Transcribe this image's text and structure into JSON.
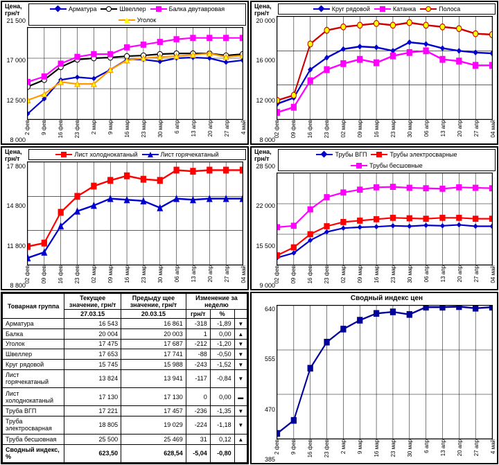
{
  "xlabels": [
    "2 фев",
    "9 фев",
    "16 фев",
    "23 фев",
    "2 мар",
    "9 мар",
    "16 мар",
    "23 мар",
    "30 мар",
    "6 апр",
    "13 апр",
    "20 апр",
    "27 апр",
    "4 май"
  ],
  "xlabels_alt": [
    "02 фев",
    "09 фев",
    "16 фев",
    "23 фев",
    "02 мар",
    "09 мар",
    "16 мар",
    "23 мар",
    "30 мар",
    "06 апр",
    "13 апр",
    "20 апр",
    "27 апр",
    "04 май"
  ],
  "ylabel": "Цена, грн/т",
  "grid_color": "#000000",
  "plot_bg": "#c0c0c0",
  "inner_bg": "#ffffff",
  "font_size_axis": 9,
  "font_size_legend": 9,
  "line_width": 2,
  "marker_size": 7,
  "chart1": {
    "type": "line",
    "ylim": [
      8000,
      21500
    ],
    "yticks": [
      8000,
      12500,
      17000,
      21500
    ],
    "series": [
      {
        "name": "Арматура",
        "color": "#0000cc",
        "marker": "diamond",
        "values": [
          8800,
          11000,
          13800,
          14200,
          14000,
          15300,
          16800,
          16800,
          16500,
          17000,
          17100,
          17000,
          16400,
          16700
        ]
      },
      {
        "name": "Швеллер",
        "color": "#000000",
        "marker": "circle",
        "fill": "#ffffff",
        "values": [
          12800,
          13800,
          15700,
          16800,
          17000,
          17100,
          17300,
          17400,
          17600,
          17700,
          17700,
          17700,
          17400,
          17600
        ]
      },
      {
        "name": "Балка двутавровая",
        "color": "#ff00ff",
        "marker": "square",
        "values": [
          13500,
          14300,
          16200,
          17200,
          17600,
          17600,
          18600,
          19000,
          19400,
          19800,
          20000,
          20000,
          20000,
          20000
        ]
      },
      {
        "name": "Уголок",
        "color": "#ff9900",
        "marker": "triangle",
        "fill": "#ffff00",
        "values": [
          10800,
          11700,
          13500,
          13200,
          13200,
          15300,
          16700,
          17000,
          17200,
          17300,
          17500,
          17700,
          17200,
          17400
        ]
      }
    ]
  },
  "chart2": {
    "type": "line",
    "ylim": [
      8000,
      20000
    ],
    "yticks": [
      8000,
      12000,
      16000,
      20000
    ],
    "series": [
      {
        "name": "Круг рядовой",
        "color": "#0000cc",
        "marker": "diamond",
        "values": [
          9800,
          10500,
          13800,
          15200,
          16200,
          16500,
          16400,
          16000,
          17000,
          16800,
          16300,
          16000,
          15800,
          15700
        ]
      },
      {
        "name": "Катанка",
        "color": "#ff00ff",
        "marker": "square",
        "values": [
          8800,
          9400,
          12500,
          13800,
          14500,
          15000,
          14600,
          15400,
          15800,
          16000,
          15000,
          14800,
          14300,
          14300
        ]
      },
      {
        "name": "Полоса",
        "color": "#cc0000",
        "marker": "circle",
        "fill": "#ffff00",
        "values": [
          10200,
          10800,
          16800,
          18400,
          18800,
          19000,
          19200,
          19000,
          19300,
          19000,
          18800,
          18600,
          18000,
          17900
        ]
      }
    ]
  },
  "chart3": {
    "type": "line",
    "ylim": [
      8800,
      17800
    ],
    "yticks": [
      8800,
      11800,
      14800,
      17800
    ],
    "series": [
      {
        "name": "Лист холоднокатаный",
        "color": "#ff0000",
        "marker": "square",
        "values": [
          10400,
          10700,
          13400,
          14800,
          15700,
          16200,
          16600,
          16300,
          16200,
          17100,
          17000,
          17100,
          17100,
          17100
        ]
      },
      {
        "name": "Лист горячекатаный",
        "color": "#0000cc",
        "marker": "triangle",
        "values": [
          9400,
          9900,
          12200,
          13500,
          14000,
          14600,
          14500,
          14400,
          13800,
          14600,
          14500,
          14600,
          14600,
          14600
        ]
      }
    ]
  },
  "chart4": {
    "type": "line",
    "ylim": [
      9000,
      28500
    ],
    "yticks": [
      9000,
      15500,
      22000,
      28500
    ],
    "series": [
      {
        "name": "Трубы ВГП",
        "color": "#0000cc",
        "marker": "diamond",
        "values": [
          10500,
          11500,
          14200,
          16000,
          16800,
          17000,
          17100,
          17300,
          17200,
          17400,
          17300,
          17500,
          17200,
          17200
        ]
      },
      {
        "name": "Трубы электросварные",
        "color": "#ff0000",
        "marker": "square",
        "values": [
          11000,
          12700,
          15500,
          17200,
          18100,
          18400,
          18700,
          19000,
          18900,
          18800,
          19000,
          19000,
          18800,
          18800
        ]
      },
      {
        "name": "Трубы бесшовные",
        "color": "#ff00ff",
        "marker": "square",
        "values": [
          17000,
          17300,
          20800,
          23400,
          24400,
          25000,
          25500,
          25600,
          25400,
          25300,
          25200,
          25500,
          25400,
          25300
        ]
      }
    ]
  },
  "chart5": {
    "type": "line",
    "title": "Сводный индекс цен",
    "ylim": [
      385,
      640
    ],
    "yticks": [
      385,
      470,
      555,
      640
    ],
    "series": [
      {
        "name": "Индекс",
        "color": "#000099",
        "marker": "square",
        "values": [
          395,
          420,
          520,
          570,
          595,
          612,
          625,
          628,
          623,
          637,
          637,
          638,
          635,
          637
        ]
      }
    ]
  },
  "table": {
    "headers": {
      "group": "Товарная группа",
      "current": "Текущее значение, грн/т",
      "prev": "Предыду щее значение, грн/т",
      "change": "Изменение за неделю",
      "date_cur": "27.03.15",
      "date_prev": "20.03.15",
      "chg_abs": "грн/т",
      "chg_pct": "%"
    },
    "rows": [
      {
        "name": "Арматура",
        "cur": "16 543",
        "prev": "16 861",
        "d": "-318",
        "p": "-1,89",
        "dir": "down"
      },
      {
        "name": "Балка",
        "cur": "20 004",
        "prev": "20 003",
        "d": "1",
        "p": "0,00",
        "dir": "up"
      },
      {
        "name": "Уголок",
        "cur": "17 475",
        "prev": "17 687",
        "d": "-212",
        "p": "-1,20",
        "dir": "down"
      },
      {
        "name": "Швеллер",
        "cur": "17 653",
        "prev": "17 741",
        "d": "-88",
        "p": "-0,50",
        "dir": "down"
      },
      {
        "name": "Круг рядовой",
        "cur": "15 745",
        "prev": "15 988",
        "d": "-243",
        "p": "-1,52",
        "dir": "down"
      },
      {
        "name": "Лист горячекатаный",
        "cur": "13 824",
        "prev": "13 941",
        "d": "-117",
        "p": "-0,84",
        "dir": "down"
      },
      {
        "name": "Лист холоднокатаный",
        "cur": "17 130",
        "prev": "17 130",
        "d": "0",
        "p": "0,00",
        "dir": "flat"
      },
      {
        "name": "Труба ВГП",
        "cur": "17 221",
        "prev": "17 457",
        "d": "-236",
        "p": "-1,35",
        "dir": "down"
      },
      {
        "name": "Труба электросварная",
        "cur": "18 805",
        "prev": "19 029",
        "d": "-224",
        "p": "-1,18",
        "dir": "down"
      },
      {
        "name": "Труба бесшовная",
        "cur": "25 500",
        "prev": "25 469",
        "d": "31",
        "p": "0,12",
        "dir": "up"
      }
    ],
    "footer": {
      "name": "Сводный индекс, %",
      "cur": "623,50",
      "prev": "628,54",
      "d": "-5,04",
      "p": "-0,80"
    }
  }
}
